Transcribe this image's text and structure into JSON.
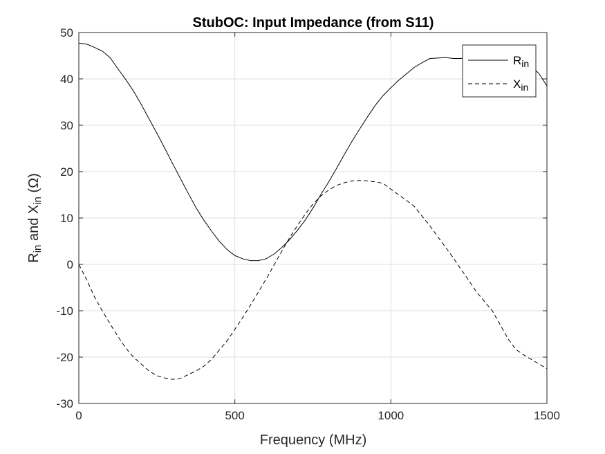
{
  "chart_data": {
    "type": "line",
    "title": "StubOC: Input Impedance (from S11)",
    "xlabel": "Frequency (MHz)",
    "ylabel": {
      "parts": [
        {
          "text": "R",
          "sub": false
        },
        {
          "text": "in",
          "sub": true
        },
        {
          "text": " and X",
          "sub": false
        },
        {
          "text": "in",
          "sub": true
        },
        {
          "text": " (Ω)",
          "sub": false
        }
      ]
    },
    "xlim": [
      0,
      1500
    ],
    "ylim": [
      -30,
      50
    ],
    "xticks": [
      0,
      500,
      1000,
      1500
    ],
    "yticks": [
      -30,
      -20,
      -10,
      0,
      10,
      20,
      30,
      40,
      50
    ],
    "xtick_labels": [
      "0",
      "500",
      "1000",
      "1500"
    ],
    "ytick_labels": [
      "-30",
      "-20",
      "-10",
      "0",
      "10",
      "20",
      "30",
      "40",
      "50"
    ],
    "grid": true,
    "legend_position": "top-right",
    "series": [
      {
        "name": "R",
        "name_sub": "in",
        "line_style": "solid",
        "color": "#000000",
        "x": [
          0,
          25,
          50,
          75,
          100,
          125,
          150,
          175,
          200,
          225,
          250,
          275,
          300,
          325,
          350,
          375,
          400,
          425,
          450,
          475,
          500,
          525,
          550,
          575,
          600,
          625,
          650,
          675,
          700,
          725,
          750,
          775,
          800,
          825,
          850,
          875,
          900,
          925,
          950,
          975,
          1000,
          1025,
          1050,
          1075,
          1100,
          1125,
          1150,
          1175,
          1200,
          1225,
          1250,
          1275,
          1300,
          1325,
          1350,
          1375,
          1400,
          1425,
          1450,
          1475,
          1500
        ],
        "y": [
          47.7,
          47.5,
          46.8,
          46.0,
          44.6,
          42.2,
          39.9,
          37.4,
          34.5,
          31.4,
          28.3,
          25.1,
          21.8,
          18.6,
          15.4,
          12.3,
          9.6,
          7.2,
          5.0,
          3.2,
          1.9,
          1.2,
          0.8,
          0.8,
          1.2,
          2.2,
          3.6,
          5.3,
          7.3,
          9.5,
          12.1,
          15.0,
          17.7,
          20.6,
          23.6,
          26.5,
          29.2,
          31.8,
          34.3,
          36.4,
          38.1,
          39.7,
          41.1,
          42.5,
          43.5,
          44.4,
          44.5,
          44.6,
          44.4,
          44.4,
          44.8,
          44.6,
          44.4,
          44.4,
          43.7,
          43.3,
          42.9,
          43.2,
          42.8,
          41.1,
          38.5
        ]
      },
      {
        "name": "X",
        "name_sub": "in",
        "line_style": "dashed",
        "color": "#000000",
        "x": [
          0,
          25,
          50,
          75,
          100,
          125,
          150,
          175,
          200,
          225,
          250,
          275,
          300,
          325,
          350,
          375,
          400,
          425,
          450,
          475,
          500,
          525,
          550,
          575,
          600,
          625,
          650,
          675,
          700,
          725,
          750,
          775,
          800,
          825,
          850,
          875,
          900,
          925,
          950,
          975,
          1000,
          1025,
          1050,
          1075,
          1100,
          1125,
          1150,
          1175,
          1200,
          1225,
          1250,
          1275,
          1300,
          1325,
          1350,
          1375,
          1400,
          1425,
          1450,
          1475,
          1500
        ],
        "y": [
          0.0,
          -3.3,
          -7.0,
          -10.0,
          -12.8,
          -15.5,
          -18.0,
          -20.0,
          -21.5,
          -23.0,
          -24.0,
          -24.5,
          -24.8,
          -24.6,
          -23.8,
          -23.0,
          -22.0,
          -20.5,
          -18.5,
          -16.5,
          -14.0,
          -11.5,
          -8.8,
          -6.0,
          -3.2,
          -0.2,
          2.8,
          5.7,
          8.3,
          10.8,
          13.0,
          14.7,
          16.0,
          17.0,
          17.6,
          18.0,
          18.1,
          18.0,
          17.8,
          17.5,
          16.2,
          15.0,
          13.8,
          12.5,
          10.4,
          8.3,
          6.0,
          3.7,
          1.4,
          -1.1,
          -3.5,
          -6.0,
          -8.0,
          -10.0,
          -13.0,
          -16.0,
          -18.3,
          -19.5,
          -20.5,
          -21.5,
          -22.5
        ]
      }
    ]
  }
}
